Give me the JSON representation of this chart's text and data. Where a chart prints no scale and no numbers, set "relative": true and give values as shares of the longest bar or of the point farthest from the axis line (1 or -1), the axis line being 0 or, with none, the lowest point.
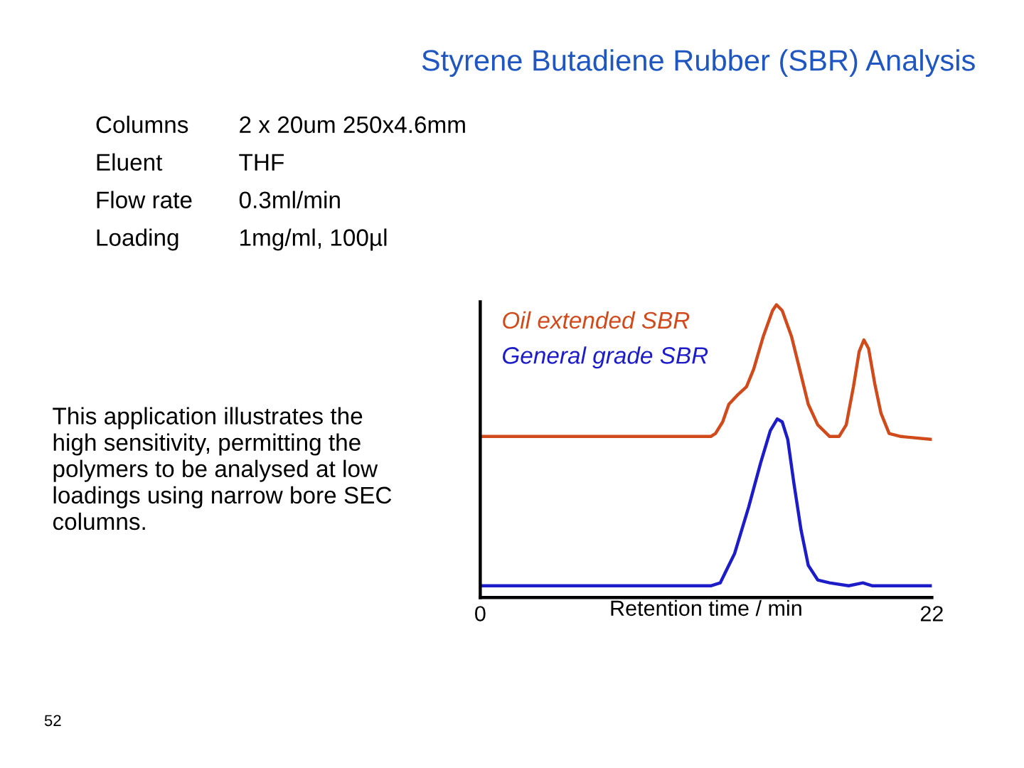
{
  "chart_data": {
    "type": "line",
    "title": "Styrene Butadiene Rubber (SBR) Analysis",
    "xlabel": "Retention time / min",
    "relative": true,
    "xlim": [
      0,
      22
    ],
    "xticks": [
      0,
      22
    ],
    "grid": false,
    "legend": "top left",
    "marker": "none",
    "line_style": "solid",
    "annotations": [
      "Columns",
      "2 x 20um 250x4.6mm",
      "Eluent",
      "THF",
      "Flow rate",
      "0.3ml/min",
      "Loading",
      "1mg/ml, 100µl",
      "This application illustrates the\nhigh sensitivity, permitting the\npolymers to be analysed at low\nloadings using narrow bore SEC\ncolumns.",
      "52"
    ],
    "series": [
      {
        "name": "Oil extended SBR",
        "color": "#d04a1c",
        "x": [
          0,
          11.23,
          11.46,
          11.81,
          12.11,
          12.51,
          12.97,
          13.32,
          13.78,
          14.24,
          14.43,
          14.71,
          15.17,
          15.63,
          15.98,
          16.44,
          17.02,
          17.48,
          17.83,
          18.18,
          18.46,
          18.69,
          18.92,
          19.22,
          19.52,
          19.92,
          20.49,
          22
        ],
        "values": [
          0.55,
          0.55,
          0.56,
          0.6,
          0.66,
          0.69,
          0.72,
          0.78,
          0.89,
          0.98,
          1.0,
          0.98,
          0.89,
          0.76,
          0.66,
          0.59,
          0.55,
          0.55,
          0.59,
          0.72,
          0.84,
          0.88,
          0.85,
          0.73,
          0.63,
          0.56,
          0.55,
          0.54
        ]
      },
      {
        "name": "General grade SBR",
        "color": "#1c1cc8",
        "x": [
          0,
          11.23,
          11.69,
          12.39,
          13.08,
          13.66,
          14.13,
          14.47,
          14.71,
          14.98,
          15.28,
          15.63,
          15.98,
          16.44,
          17.02,
          17.95,
          18.64,
          19.11,
          19.8,
          22
        ],
        "values": [
          0.04,
          0.04,
          0.05,
          0.15,
          0.31,
          0.46,
          0.57,
          0.61,
          0.6,
          0.54,
          0.39,
          0.23,
          0.11,
          0.06,
          0.05,
          0.04,
          0.05,
          0.04,
          0.04,
          0.04
        ]
      }
    ]
  }
}
